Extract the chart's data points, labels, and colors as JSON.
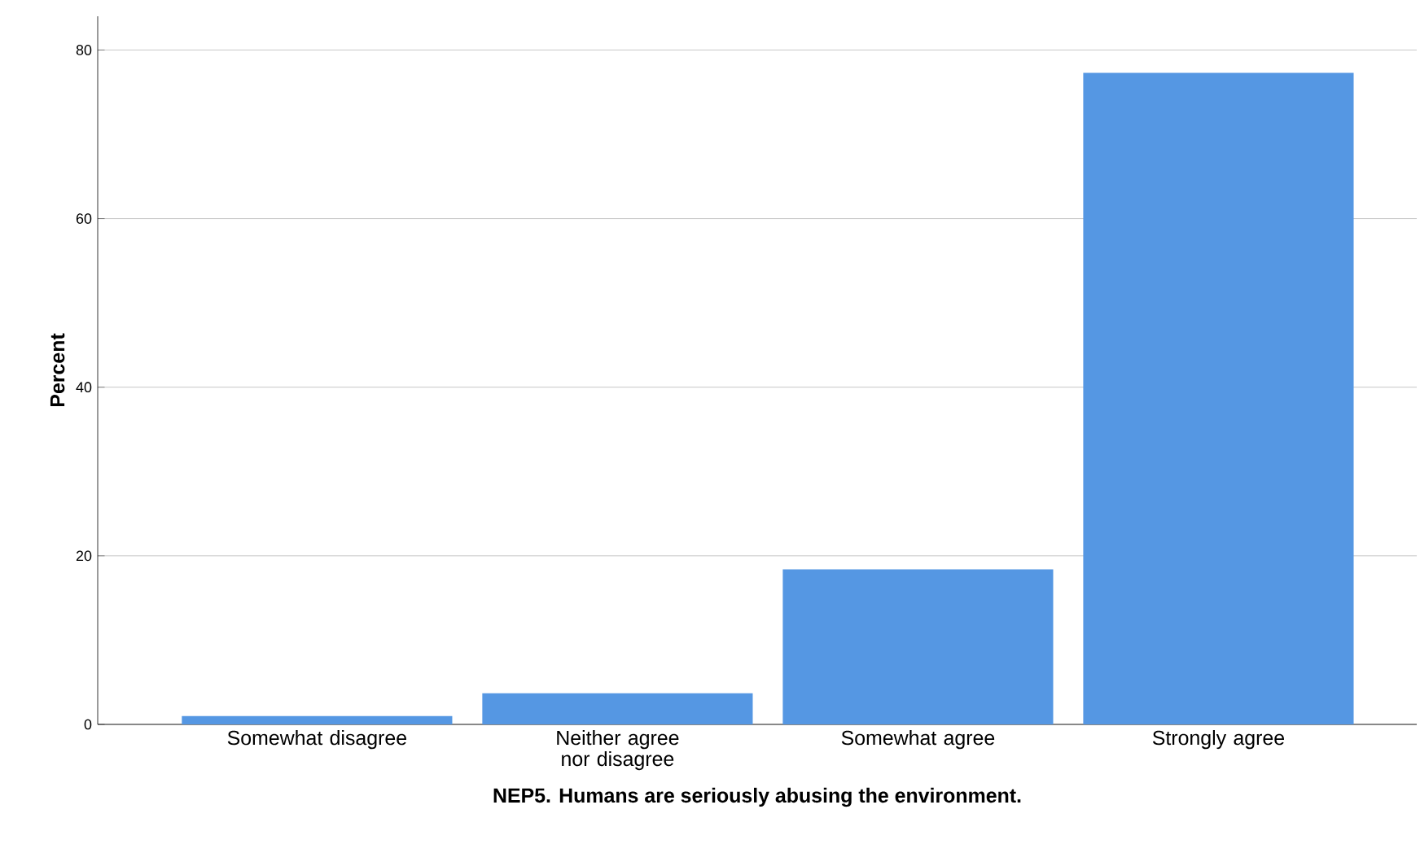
{
  "chart_data": {
    "type": "bar",
    "xlabel": "NEP5. Humans are seriously abusing the environment.",
    "ylabel": "Percent",
    "categories": [
      "Somewhat disagree",
      "Neither agree nor disagree",
      "Somewhat agree",
      "Strongly agree"
    ],
    "values": [
      1.0,
      3.7,
      18.4,
      77.3
    ],
    "color": "#5597e3",
    "ylim": [
      0,
      84
    ],
    "yticks": [
      0,
      20,
      40,
      60,
      80
    ],
    "grid": "y"
  }
}
